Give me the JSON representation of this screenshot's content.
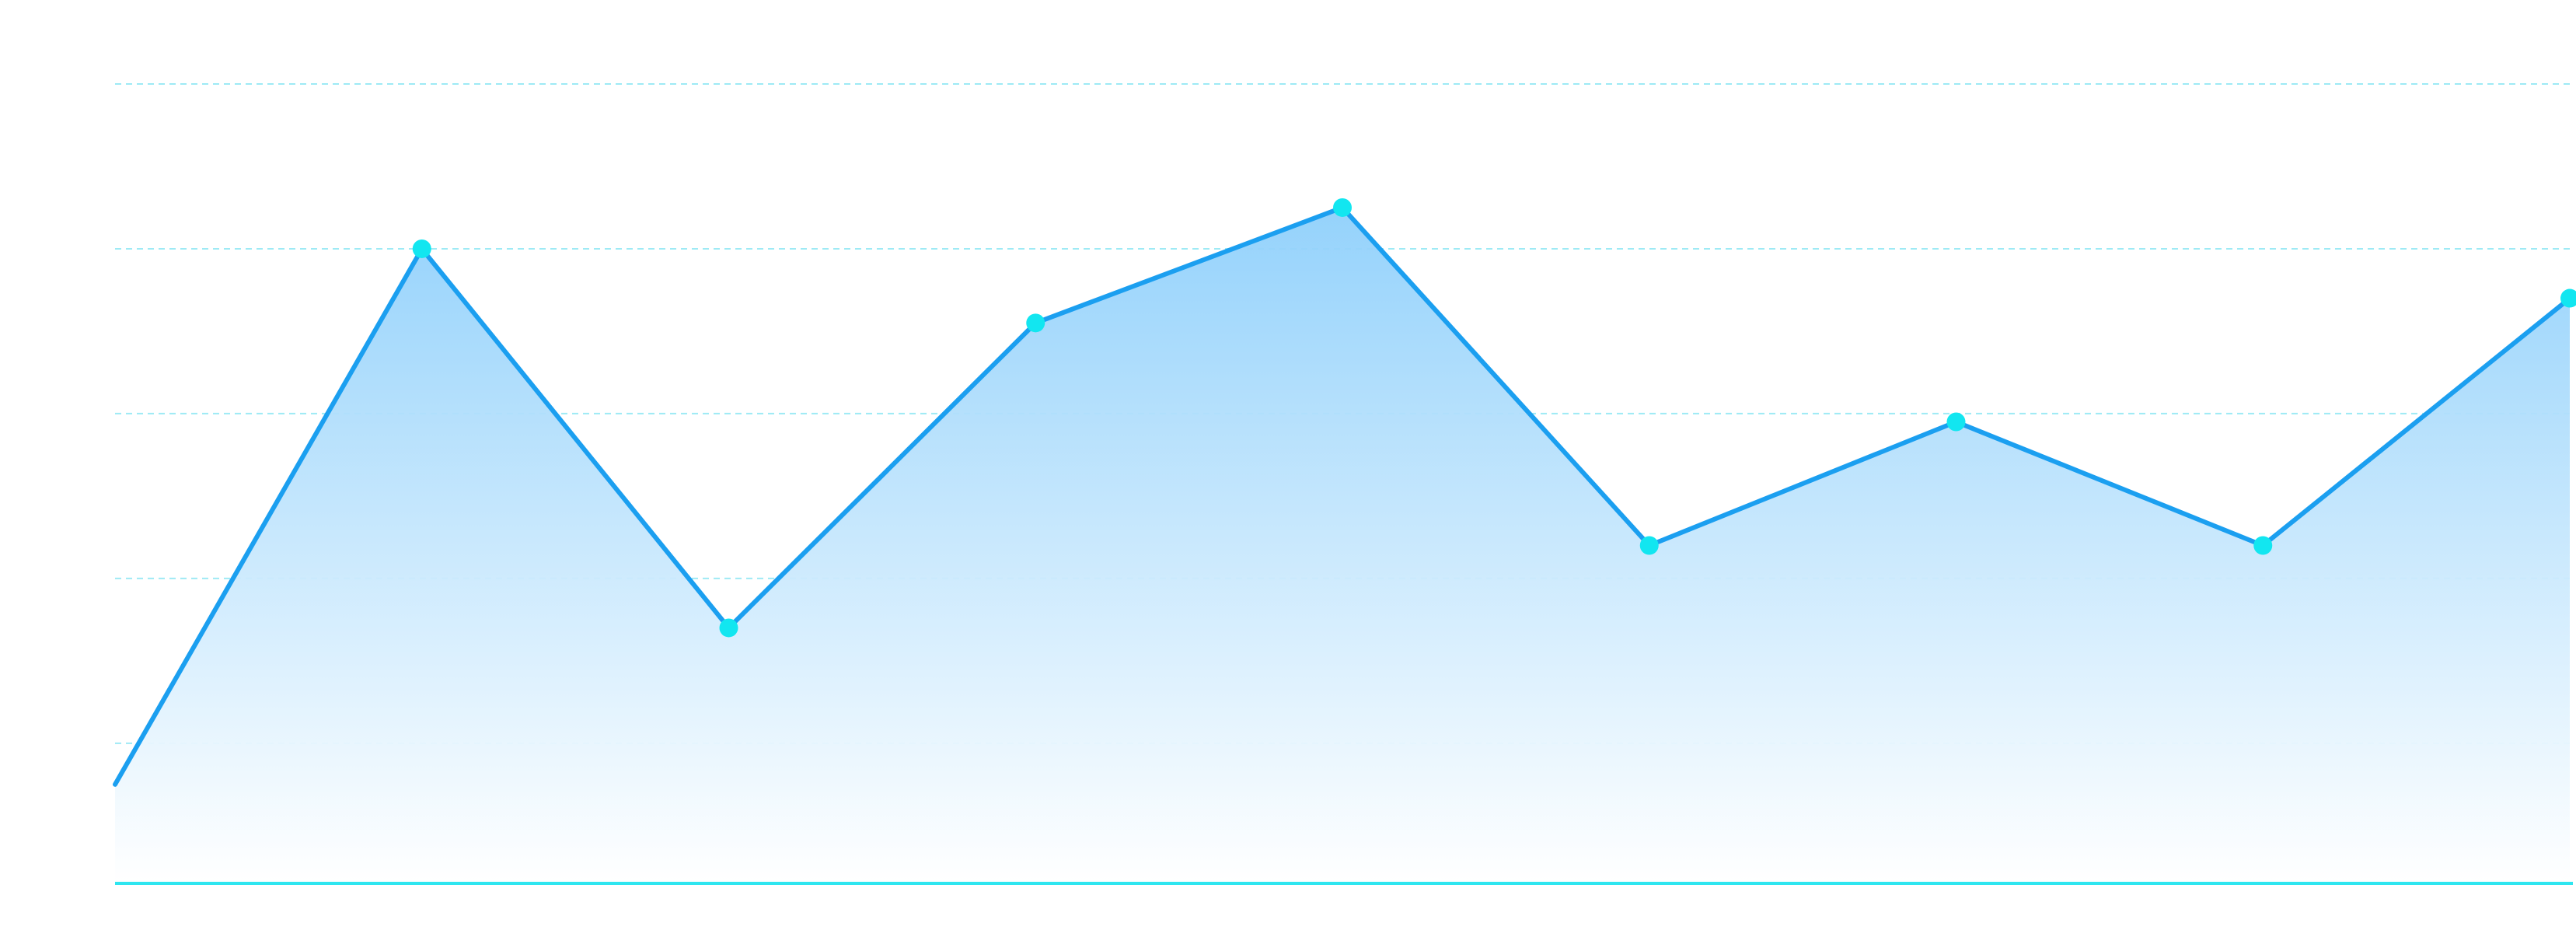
{
  "chart_data": {
    "type": "area",
    "title": "",
    "xlabel": "",
    "ylabel": "",
    "x": [
      0,
      1,
      2,
      3,
      4,
      5,
      6,
      7,
      8
    ],
    "ylim": [
      0,
      97
    ],
    "grid": true,
    "gridlines": [
      17,
      37,
      57,
      77,
      97
    ],
    "legend": "none",
    "series": [
      {
        "values": [
          12,
          77,
          31,
          68,
          82,
          41,
          56,
          41,
          71
        ],
        "line_color": "#1b9ff0",
        "point_color": "#12e6f0",
        "area_top_color": "#8fd0fb",
        "area_bottom_color": "#ffffff"
      }
    ],
    "colors": {
      "grid": "#9eeaf5",
      "axis": "#2ee6f0"
    }
  }
}
